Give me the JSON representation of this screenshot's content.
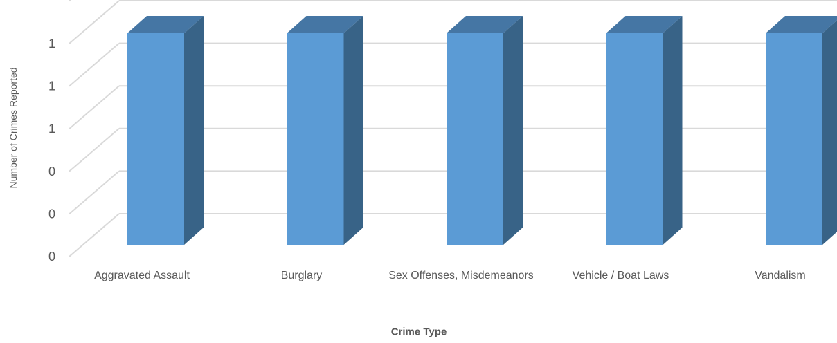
{
  "chart_data": {
    "type": "bar",
    "style": "3d-column",
    "categories": [
      "Aggravated Assault",
      "Burglary",
      "Sex Offenses, Misdemeanors",
      "Vehicle / Boat Laws",
      "Vandalism"
    ],
    "values": [
      1,
      1,
      1,
      1,
      1
    ],
    "title": "",
    "xlabel": "Crime Type",
    "ylabel": "Number of Crimes Reported",
    "ylim": [
      0,
      1.2
    ],
    "yticks": [
      0,
      0.2,
      0.4,
      0.6,
      0.8,
      1,
      1.2
    ],
    "ytick_labels": [
      "0",
      "0",
      "0",
      "1",
      "1",
      "1",
      ""
    ],
    "grid": true,
    "legend": "none",
    "colors": {
      "bar_front": "#5b9bd5",
      "bar_side": "#386387",
      "bar_top": "#4576a4",
      "grid": "#d9d9d9",
      "text": "#595959"
    }
  }
}
